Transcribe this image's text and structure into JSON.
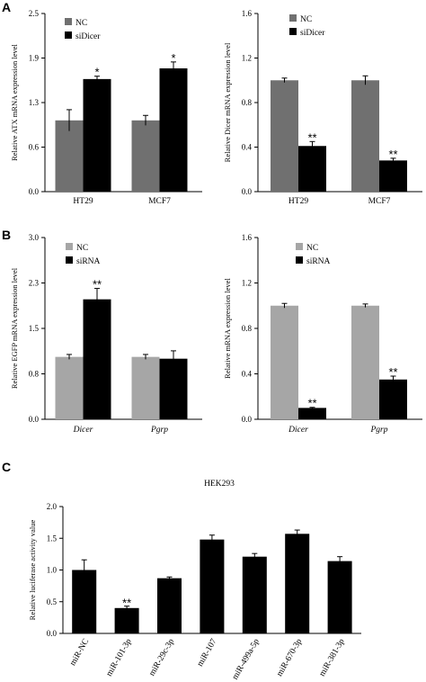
{
  "colors": {
    "nc": "#707070",
    "nc_light": "#a6a6a6",
    "treat": "#000000",
    "axis": "#000000"
  },
  "panel_labels": {
    "a": "A",
    "b": "B",
    "c": "C"
  },
  "chart_data": [
    {
      "type": "bar",
      "panel": "A",
      "ylabel": "Relative ATX mRNA expression level",
      "ylim": [
        0,
        2.5
      ],
      "yticks": [
        "0.0",
        "0.6",
        "1.3",
        "1.9",
        "2.5"
      ],
      "categories": [
        "HT29",
        "MCF7"
      ],
      "category_italic": false,
      "legend_position": "top-left",
      "series": [
        {
          "name": "NC",
          "color": "#707070",
          "values": [
            1.0,
            1.0
          ],
          "errors": [
            0.15,
            0.07
          ],
          "stars": [
            "",
            ""
          ]
        },
        {
          "name": "siDicer",
          "color": "#000000",
          "values": [
            1.58,
            1.73
          ],
          "errors": [
            0.04,
            0.09
          ],
          "stars": [
            "*",
            "*"
          ]
        }
      ]
    },
    {
      "type": "bar",
      "panel": "A",
      "ylabel": "Relative Dicer mRNA expression level",
      "ylim": [
        0,
        1.6
      ],
      "yticks": [
        "0.0",
        "0.4",
        "0.8",
        "1.2",
        "1.6"
      ],
      "categories": [
        "HT29",
        "MCF7"
      ],
      "category_italic": false,
      "legend_position": "top-center",
      "series": [
        {
          "name": "NC",
          "color": "#707070",
          "values": [
            1.0,
            1.0
          ],
          "errors": [
            0.02,
            0.04
          ],
          "stars": [
            "",
            ""
          ]
        },
        {
          "name": "siDicer",
          "color": "#000000",
          "values": [
            0.41,
            0.28
          ],
          "errors": [
            0.04,
            0.02
          ],
          "stars": [
            "**",
            "**"
          ]
        }
      ]
    },
    {
      "type": "bar",
      "panel": "B",
      "ylabel": "Relative EGFP mRNA expression level",
      "ylim": [
        0,
        3.0
      ],
      "yticks": [
        "0.0",
        "0.8",
        "1.5",
        "2.3",
        "3.0"
      ],
      "categories": [
        "Dicer",
        "Pgrp"
      ],
      "category_italic": true,
      "legend_position": "top-left",
      "series": [
        {
          "name": "NC",
          "color": "#a6a6a6",
          "values": [
            1.03,
            1.03
          ],
          "errors": [
            0.04,
            0.04
          ],
          "stars": [
            "",
            ""
          ]
        },
        {
          "name": "siRNA",
          "color": "#000000",
          "values": [
            1.98,
            1.0
          ],
          "errors": [
            0.18,
            0.13
          ],
          "stars": [
            "**",
            ""
          ]
        }
      ]
    },
    {
      "type": "bar",
      "panel": "B",
      "ylabel": "Relative mRNA expression level",
      "ylim": [
        0,
        1.6
      ],
      "yticks": [
        "0.0",
        "0.4",
        "0.8",
        "1.2",
        "1.6"
      ],
      "categories": [
        "Dicer",
        "Pgrp"
      ],
      "category_italic": true,
      "legend_position": "top-left",
      "series": [
        {
          "name": "NC",
          "color": "#a6a6a6",
          "values": [
            1.0,
            1.0
          ],
          "errors": [
            0.02,
            0.015
          ],
          "stars": [
            "",
            ""
          ]
        },
        {
          "name": "siRNA",
          "color": "#000000",
          "values": [
            0.1,
            0.35
          ],
          "errors": [
            0.005,
            0.03
          ],
          "stars": [
            "**",
            "**"
          ]
        }
      ]
    },
    {
      "type": "bar",
      "panel": "C",
      "title": "HEK293",
      "ylabel": "Relative luciferase activity value",
      "ylim": [
        0,
        2.0
      ],
      "yticks": [
        "0.0",
        "0.5",
        "1.0",
        "1.5",
        "2.0"
      ],
      "categories": [
        "miR-NC",
        "miR-101-3p",
        "miR-29c-3p",
        "miR-107",
        "miR-499a-5p",
        "miR-670-3p",
        "miR-381-3p"
      ],
      "category_italic": false,
      "legend_position": "none",
      "series": [
        {
          "name": "",
          "color": "#000000",
          "values": [
            1.0,
            0.4,
            0.87,
            1.48,
            1.21,
            1.57,
            1.14
          ],
          "errors": [
            0.16,
            0.03,
            0.02,
            0.07,
            0.05,
            0.06,
            0.07
          ],
          "stars": [
            "",
            "**",
            "",
            "",
            "",
            "",
            ""
          ]
        }
      ]
    }
  ]
}
